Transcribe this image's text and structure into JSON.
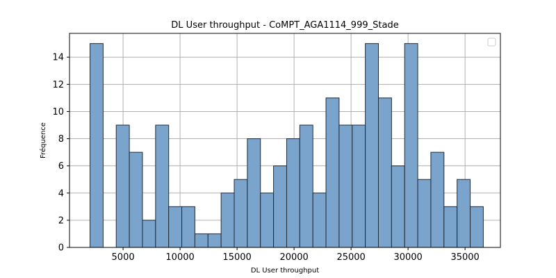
{
  "chart_data": {
    "type": "bar",
    "subtype": "histogram",
    "title": "DL User throughput - CoMPT_AGA1114_999_Stade",
    "xlabel": "DL User throughput",
    "ylabel": "Fréquence",
    "xlim": [
      300,
      38100
    ],
    "ylim": [
      0,
      15.75
    ],
    "xticks": [
      5000,
      10000,
      15000,
      20000,
      25000,
      30000,
      35000
    ],
    "yticks": [
      0,
      2,
      4,
      6,
      8,
      10,
      12,
      14
    ],
    "bin_width": 1150,
    "bins": [
      {
        "x0": 2100,
        "value": 15
      },
      {
        "x0": 3250,
        "value": 0
      },
      {
        "x0": 4400,
        "value": 9
      },
      {
        "x0": 5550,
        "value": 7
      },
      {
        "x0": 6700,
        "value": 2
      },
      {
        "x0": 7850,
        "value": 9
      },
      {
        "x0": 9000,
        "value": 3
      },
      {
        "x0": 10150,
        "value": 3
      },
      {
        "x0": 11300,
        "value": 1
      },
      {
        "x0": 12450,
        "value": 1
      },
      {
        "x0": 13600,
        "value": 4
      },
      {
        "x0": 14750,
        "value": 5
      },
      {
        "x0": 15900,
        "value": 8
      },
      {
        "x0": 17050,
        "value": 4
      },
      {
        "x0": 18200,
        "value": 6
      },
      {
        "x0": 19350,
        "value": 8
      },
      {
        "x0": 20500,
        "value": 9
      },
      {
        "x0": 21650,
        "value": 4
      },
      {
        "x0": 22800,
        "value": 11
      },
      {
        "x0": 23950,
        "value": 9
      },
      {
        "x0": 25100,
        "value": 9
      },
      {
        "x0": 26250,
        "value": 15
      },
      {
        "x0": 27400,
        "value": 11
      },
      {
        "x0": 28550,
        "value": 6
      },
      {
        "x0": 29700,
        "value": 15
      },
      {
        "x0": 30850,
        "value": 5
      },
      {
        "x0": 32000,
        "value": 7
      },
      {
        "x0": 33150,
        "value": 3
      },
      {
        "x0": 34300,
        "value": 5
      },
      {
        "x0": 35450,
        "value": 3
      }
    ],
    "grid": true,
    "legend": "top-right, empty",
    "colors": {
      "bar_fill": "#7ba4cc",
      "bar_edge": "#1f2b38",
      "grid": "#b0b0b0",
      "axis": "#000000"
    }
  }
}
